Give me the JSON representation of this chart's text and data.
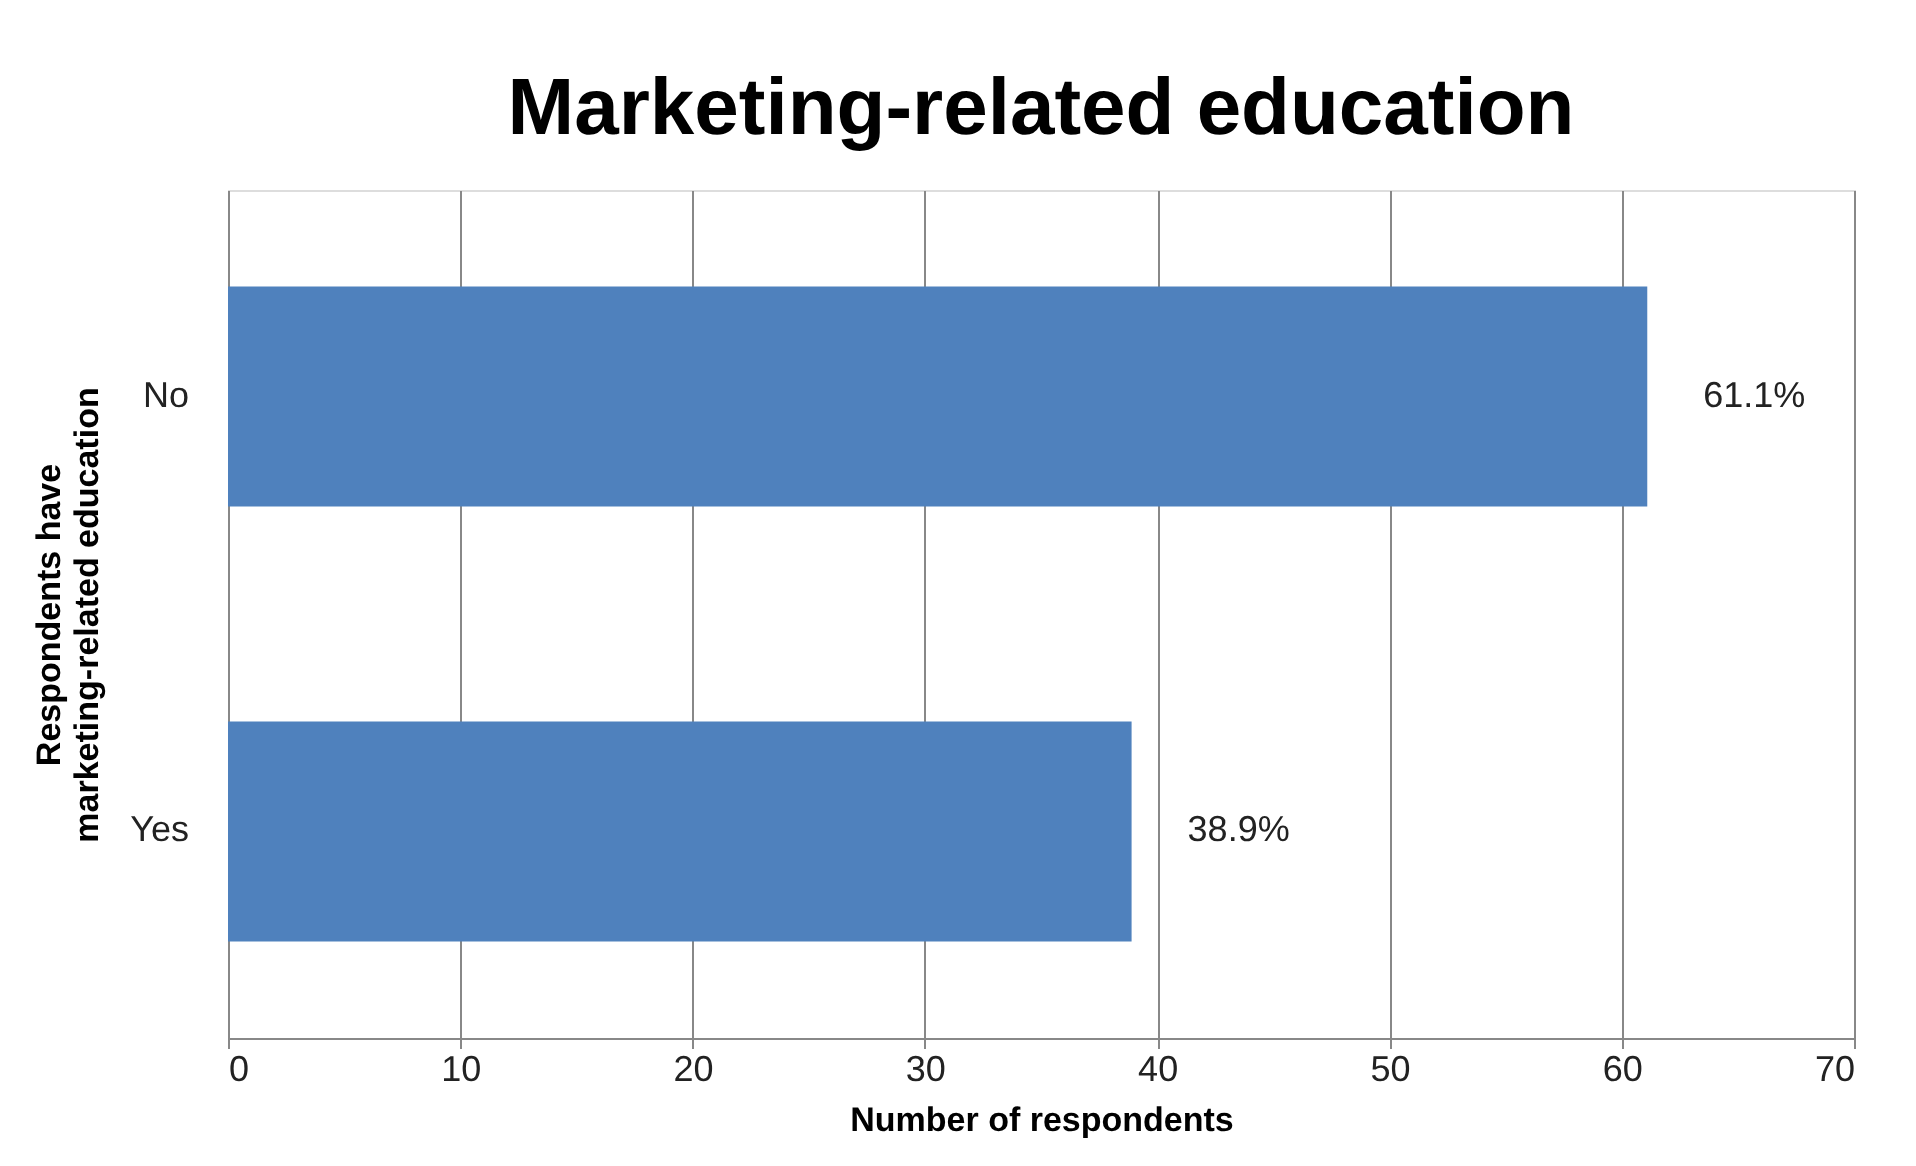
{
  "chart_data": {
    "type": "bar",
    "orientation": "horizontal",
    "title": "Marketing-related education",
    "xlabel": "Number of respondents",
    "ylabel": "Respondents have marketing-related education",
    "categories": [
      "No",
      "Yes"
    ],
    "values": [
      61.1,
      38.9
    ],
    "color": "#4f81bd",
    "value_labels": [
      "61.1%",
      "38.9%"
    ],
    "xlim": [
      0,
      70
    ],
    "xticks": [
      0,
      10,
      20,
      30,
      40,
      50,
      60,
      70
    ],
    "grid": "x"
  }
}
